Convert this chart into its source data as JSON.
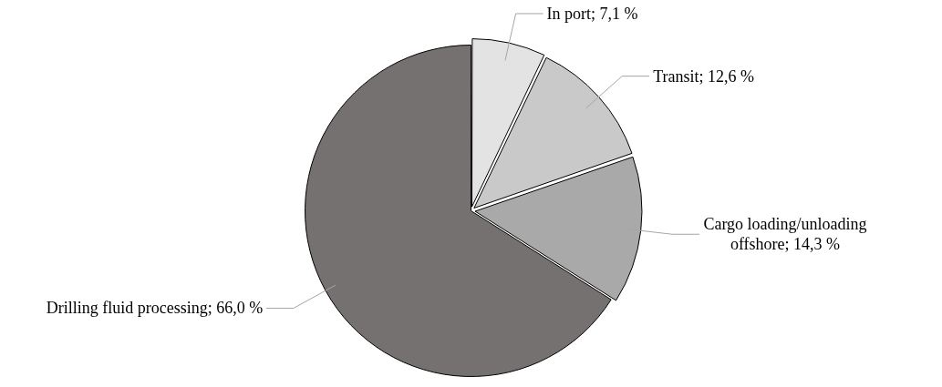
{
  "chart_data": {
    "type": "pie",
    "categories": [
      "In port",
      "Transit",
      "Cargo loading/unloading offshore",
      "Drilling fluid processing"
    ],
    "values": [
      7.1,
      12.6,
      14.3,
      66.0
    ],
    "value_labels": [
      "7,1 %",
      "12,6 %",
      "14,3 %",
      "66,0 %"
    ],
    "colors": [
      "#e3e3e3",
      "#c9c9c9",
      "#a9a9a9",
      "#767171"
    ],
    "legend": false
  }
}
